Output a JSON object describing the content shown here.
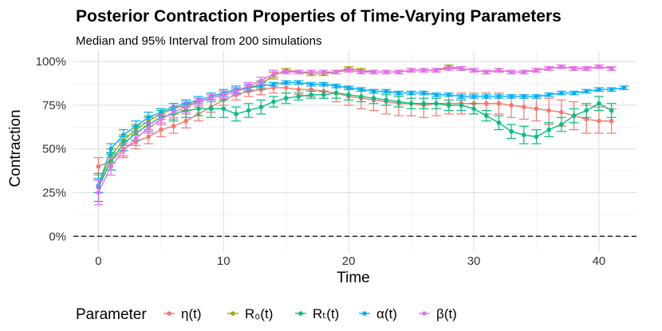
{
  "chart_data": {
    "type": "line",
    "title": "Posterior Contraction Properties of Time-Varying Parameters",
    "subtitle": "Median and 95% Interval from 200 simulations",
    "xlabel": "Time",
    "ylabel": "Contraction",
    "xlim": [
      -2,
      43
    ],
    "ylim": [
      0,
      1
    ],
    "xticks": [
      0,
      10,
      20,
      30,
      40
    ],
    "xtick_labels": [
      "0",
      "10",
      "20",
      "30",
      "40"
    ],
    "yticks": [
      0,
      0.25,
      0.5,
      0.75,
      1.0
    ],
    "ytick_labels": [
      "0%",
      "25%",
      "50%",
      "75%",
      "100%"
    ],
    "reference_line": {
      "y": 0,
      "style": "dashed",
      "color": "#000000"
    },
    "grid": true,
    "legend": {
      "title": "Parameter",
      "position": "bottom"
    },
    "series": [
      {
        "name": "η(t)",
        "color": "#F8766D",
        "x": [
          0,
          1,
          2,
          3,
          4,
          5,
          6,
          7,
          8,
          9,
          10,
          11,
          12,
          13,
          14,
          15,
          16,
          17,
          18,
          19,
          20,
          21,
          22,
          23,
          24,
          25,
          26,
          27,
          28,
          29,
          30,
          31,
          32,
          33,
          34,
          35,
          36,
          37,
          38,
          39,
          40,
          41
        ],
        "y": [
          0.4,
          0.43,
          0.5,
          0.54,
          0.57,
          0.61,
          0.63,
          0.66,
          0.7,
          0.74,
          0.78,
          0.81,
          0.83,
          0.84,
          0.85,
          0.85,
          0.84,
          0.84,
          0.83,
          0.82,
          0.8,
          0.79,
          0.78,
          0.77,
          0.76,
          0.76,
          0.75,
          0.76,
          0.76,
          0.76,
          0.76,
          0.76,
          0.76,
          0.75,
          0.74,
          0.73,
          0.72,
          0.71,
          0.69,
          0.67,
          0.66,
          0.66
        ],
        "lower": [
          0.35,
          0.38,
          0.46,
          0.5,
          0.53,
          0.57,
          0.59,
          0.62,
          0.66,
          0.71,
          0.75,
          0.78,
          0.8,
          0.81,
          0.82,
          0.82,
          0.81,
          0.8,
          0.79,
          0.77,
          0.75,
          0.73,
          0.72,
          0.7,
          0.69,
          0.69,
          0.68,
          0.69,
          0.7,
          0.7,
          0.7,
          0.7,
          0.7,
          0.68,
          0.67,
          0.66,
          0.64,
          0.63,
          0.61,
          0.59,
          0.59,
          0.59
        ],
        "upper": [
          0.45,
          0.48,
          0.54,
          0.58,
          0.61,
          0.65,
          0.67,
          0.7,
          0.74,
          0.77,
          0.81,
          0.84,
          0.86,
          0.87,
          0.88,
          0.88,
          0.87,
          0.87,
          0.87,
          0.86,
          0.85,
          0.84,
          0.84,
          0.83,
          0.83,
          0.83,
          0.82,
          0.82,
          0.82,
          0.82,
          0.82,
          0.82,
          0.82,
          0.81,
          0.81,
          0.8,
          0.79,
          0.78,
          0.77,
          0.75,
          0.74,
          0.73
        ]
      },
      {
        "name": "R₀(t)",
        "color": "#A3A500",
        "x": [
          0,
          1,
          2,
          3,
          4,
          5,
          6,
          7,
          8,
          9,
          10,
          11,
          12,
          13,
          14,
          15,
          16,
          17,
          18,
          19,
          20,
          21,
          22,
          23,
          24,
          25,
          26,
          27,
          28,
          29,
          30,
          31,
          32,
          33,
          34,
          35,
          36,
          37,
          38,
          39,
          40,
          41
        ],
        "y": [
          0.29,
          0.46,
          0.55,
          0.61,
          0.66,
          0.7,
          0.73,
          0.75,
          0.77,
          0.79,
          0.81,
          0.83,
          0.85,
          0.87,
          0.92,
          0.95,
          0.94,
          0.93,
          0.93,
          0.94,
          0.96,
          0.95,
          0.94,
          0.94,
          0.94,
          0.95,
          0.95,
          0.95,
          0.97,
          0.96,
          0.95,
          0.94,
          0.95,
          0.94,
          0.94,
          0.95,
          0.96,
          0.97,
          0.96,
          0.96,
          0.97,
          0.96
        ],
        "lower": [
          0.25,
          0.42,
          0.52,
          0.58,
          0.63,
          0.67,
          0.7,
          0.72,
          0.75,
          0.77,
          0.79,
          0.81,
          0.83,
          0.85,
          0.9,
          0.94,
          0.93,
          0.92,
          0.92,
          0.93,
          0.95,
          0.94,
          0.93,
          0.93,
          0.93,
          0.94,
          0.94,
          0.94,
          0.96,
          0.95,
          0.94,
          0.93,
          0.94,
          0.93,
          0.93,
          0.94,
          0.95,
          0.96,
          0.95,
          0.95,
          0.96,
          0.95
        ],
        "upper": [
          0.33,
          0.5,
          0.58,
          0.64,
          0.69,
          0.73,
          0.76,
          0.78,
          0.79,
          0.81,
          0.83,
          0.85,
          0.87,
          0.89,
          0.94,
          0.96,
          0.95,
          0.94,
          0.94,
          0.95,
          0.97,
          0.96,
          0.95,
          0.95,
          0.95,
          0.96,
          0.96,
          0.96,
          0.98,
          0.97,
          0.96,
          0.95,
          0.96,
          0.95,
          0.95,
          0.96,
          0.97,
          0.98,
          0.97,
          0.97,
          0.98,
          0.97
        ]
      },
      {
        "name": "Rₜ(t)",
        "color": "#00BF7D",
        "x": [
          0,
          1,
          2,
          3,
          4,
          5,
          6,
          7,
          8,
          9,
          10,
          11,
          12,
          13,
          14,
          15,
          16,
          17,
          18,
          19,
          20,
          21,
          22,
          23,
          24,
          25,
          26,
          27,
          28,
          29,
          30,
          31,
          32,
          33,
          34,
          35,
          36,
          37,
          38,
          39,
          40,
          41
        ],
        "y": [
          0.28,
          0.43,
          0.53,
          0.59,
          0.64,
          0.68,
          0.7,
          0.72,
          0.73,
          0.73,
          0.73,
          0.7,
          0.72,
          0.74,
          0.77,
          0.79,
          0.8,
          0.81,
          0.81,
          0.82,
          0.81,
          0.8,
          0.79,
          0.78,
          0.77,
          0.76,
          0.76,
          0.76,
          0.75,
          0.75,
          0.73,
          0.69,
          0.65,
          0.6,
          0.58,
          0.57,
          0.61,
          0.64,
          0.69,
          0.72,
          0.76,
          0.72
        ],
        "lower": [
          0.2,
          0.38,
          0.49,
          0.55,
          0.6,
          0.64,
          0.66,
          0.68,
          0.69,
          0.68,
          0.68,
          0.66,
          0.68,
          0.7,
          0.74,
          0.76,
          0.78,
          0.79,
          0.79,
          0.79,
          0.78,
          0.77,
          0.76,
          0.75,
          0.74,
          0.73,
          0.73,
          0.73,
          0.72,
          0.72,
          0.7,
          0.66,
          0.61,
          0.56,
          0.53,
          0.53,
          0.57,
          0.6,
          0.65,
          0.68,
          0.72,
          0.68
        ],
        "upper": [
          0.36,
          0.48,
          0.57,
          0.63,
          0.68,
          0.72,
          0.74,
          0.76,
          0.77,
          0.78,
          0.78,
          0.74,
          0.76,
          0.78,
          0.8,
          0.82,
          0.82,
          0.83,
          0.83,
          0.85,
          0.84,
          0.83,
          0.82,
          0.81,
          0.8,
          0.79,
          0.79,
          0.79,
          0.78,
          0.78,
          0.76,
          0.72,
          0.69,
          0.64,
          0.63,
          0.61,
          0.65,
          0.68,
          0.73,
          0.76,
          0.8,
          0.76
        ]
      },
      {
        "name": "α(t)",
        "color": "#00B0F6",
        "x": [
          0,
          1,
          2,
          3,
          4,
          5,
          6,
          7,
          8,
          9,
          10,
          11,
          12,
          13,
          14,
          15,
          16,
          17,
          18,
          19,
          20,
          21,
          22,
          23,
          24,
          25,
          26,
          27,
          28,
          29,
          30,
          31,
          32,
          33,
          34,
          35,
          36,
          37,
          38,
          39,
          40,
          41,
          42
        ],
        "y": [
          0.29,
          0.5,
          0.58,
          0.63,
          0.68,
          0.71,
          0.74,
          0.76,
          0.78,
          0.8,
          0.82,
          0.84,
          0.85,
          0.86,
          0.87,
          0.88,
          0.88,
          0.87,
          0.87,
          0.86,
          0.85,
          0.84,
          0.83,
          0.83,
          0.82,
          0.82,
          0.82,
          0.81,
          0.81,
          0.8,
          0.8,
          0.8,
          0.8,
          0.8,
          0.8,
          0.8,
          0.81,
          0.82,
          0.82,
          0.83,
          0.84,
          0.84,
          0.85
        ],
        "lower": [
          0.25,
          0.47,
          0.55,
          0.6,
          0.65,
          0.69,
          0.72,
          0.74,
          0.76,
          0.78,
          0.8,
          0.82,
          0.83,
          0.84,
          0.86,
          0.87,
          0.87,
          0.86,
          0.86,
          0.85,
          0.84,
          0.83,
          0.82,
          0.82,
          0.81,
          0.81,
          0.81,
          0.8,
          0.8,
          0.79,
          0.79,
          0.79,
          0.79,
          0.79,
          0.79,
          0.79,
          0.8,
          0.81,
          0.81,
          0.82,
          0.83,
          0.83,
          0.84
        ],
        "upper": [
          0.33,
          0.53,
          0.61,
          0.66,
          0.71,
          0.73,
          0.76,
          0.78,
          0.8,
          0.82,
          0.84,
          0.86,
          0.87,
          0.88,
          0.88,
          0.89,
          0.89,
          0.88,
          0.88,
          0.87,
          0.86,
          0.85,
          0.84,
          0.84,
          0.83,
          0.83,
          0.83,
          0.82,
          0.82,
          0.81,
          0.81,
          0.81,
          0.81,
          0.81,
          0.81,
          0.81,
          0.82,
          0.83,
          0.83,
          0.84,
          0.85,
          0.85,
          0.86
        ]
      },
      {
        "name": "β(t)",
        "color": "#E76BF3",
        "x": [
          0,
          1,
          2,
          3,
          4,
          5,
          6,
          7,
          8,
          9,
          10,
          11,
          12,
          13,
          14,
          15,
          16,
          17,
          18,
          19,
          20,
          21,
          22,
          23,
          24,
          25,
          26,
          27,
          28,
          29,
          30,
          31,
          32,
          33,
          34,
          35,
          36,
          37,
          38,
          39,
          40,
          41
        ],
        "y": [
          0.25,
          0.4,
          0.49,
          0.56,
          0.62,
          0.67,
          0.71,
          0.74,
          0.77,
          0.79,
          0.81,
          0.83,
          0.86,
          0.89,
          0.93,
          0.94,
          0.94,
          0.94,
          0.94,
          0.94,
          0.95,
          0.94,
          0.94,
          0.94,
          0.94,
          0.95,
          0.95,
          0.95,
          0.96,
          0.96,
          0.95,
          0.94,
          0.95,
          0.94,
          0.94,
          0.95,
          0.96,
          0.97,
          0.96,
          0.96,
          0.97,
          0.96
        ],
        "lower": [
          0.18,
          0.35,
          0.45,
          0.52,
          0.59,
          0.64,
          0.68,
          0.71,
          0.75,
          0.77,
          0.79,
          0.81,
          0.84,
          0.87,
          0.91,
          0.93,
          0.93,
          0.93,
          0.93,
          0.93,
          0.94,
          0.93,
          0.93,
          0.93,
          0.93,
          0.94,
          0.94,
          0.94,
          0.95,
          0.95,
          0.94,
          0.93,
          0.94,
          0.93,
          0.93,
          0.94,
          0.95,
          0.96,
          0.95,
          0.95,
          0.96,
          0.95
        ],
        "upper": [
          0.32,
          0.45,
          0.53,
          0.6,
          0.65,
          0.7,
          0.74,
          0.77,
          0.79,
          0.81,
          0.83,
          0.85,
          0.88,
          0.91,
          0.95,
          0.95,
          0.95,
          0.95,
          0.95,
          0.95,
          0.96,
          0.95,
          0.95,
          0.95,
          0.95,
          0.96,
          0.96,
          0.96,
          0.97,
          0.97,
          0.96,
          0.95,
          0.96,
          0.95,
          0.95,
          0.96,
          0.97,
          0.98,
          0.97,
          0.97,
          0.98,
          0.97
        ]
      }
    ]
  }
}
